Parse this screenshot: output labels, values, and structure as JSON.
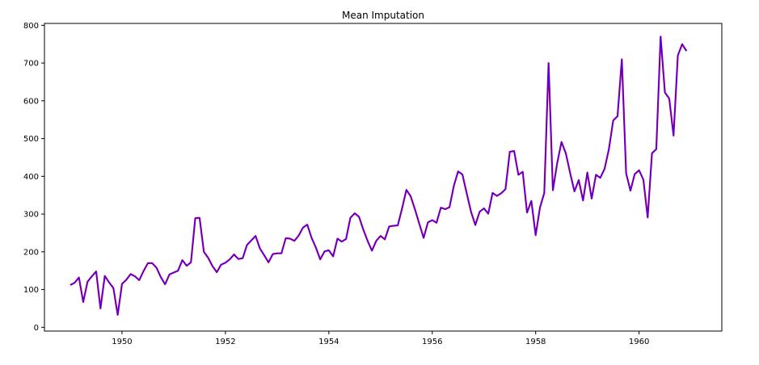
{
  "chart_data": {
    "type": "line",
    "title": "Mean Imputation",
    "xlabel": "",
    "ylabel": "",
    "xlim": [
      1948.5,
      1961.6
    ],
    "ylim": [
      -10,
      805
    ],
    "grid": false,
    "legend": "none",
    "x_ticks": [
      1950,
      1952,
      1954,
      1956,
      1958,
      1960
    ],
    "y_ticks": [
      0,
      100,
      200,
      300,
      400,
      500,
      600,
      700,
      800
    ],
    "x_tick_labels": [
      "1950",
      "1952",
      "1954",
      "1956",
      "1958",
      "1960"
    ],
    "y_tick_labels": [
      "0",
      "100",
      "200",
      "300",
      "400",
      "500",
      "600",
      "700",
      "800"
    ],
    "start_year": 1949,
    "step_years": 0.08333,
    "colors": {
      "series_outer": "#ff0000",
      "series_inner": "#4400ff",
      "axis": "#000000"
    },
    "series": [
      {
        "values": [
          112,
          118,
          132,
          67,
          121,
          135,
          148,
          50,
          136,
          119,
          104,
          33,
          115,
          126,
          141,
          135,
          125,
          149,
          170,
          170,
          158,
          133,
          114,
          140,
          145,
          150,
          178,
          163,
          172,
          289,
          290,
          200,
          184,
          162,
          146,
          166,
          171,
          180,
          193,
          181,
          183,
          218,
          230,
          242,
          209,
          191,
          172,
          194,
          196,
          196,
          236,
          235,
          229,
          243,
          264,
          272,
          237,
          211,
          180,
          201,
          204,
          188,
          235,
          227,
          234,
          290,
          302,
          293,
          259,
          229,
          203,
          229,
          242,
          233,
          267,
          269,
          270,
          315,
          364,
          347,
          312,
          274,
          237,
          278,
          284,
          277,
          317,
          313,
          318,
          374,
          413,
          405,
          355,
          306,
          271,
          306,
          315,
          301,
          356,
          348,
          355,
          366,
          465,
          467,
          404,
          412,
          304,
          335,
          244,
          317,
          356,
          700,
          363,
          435,
          491,
          461,
          409,
          360,
          390,
          336,
          410,
          341,
          404,
          396,
          420,
          472,
          548,
          559,
          710,
          408,
          362,
          406,
          416,
          391,
          291,
          461,
          472,
          770,
          622,
          606,
          508,
          720,
          750,
          732
        ]
      }
    ]
  }
}
